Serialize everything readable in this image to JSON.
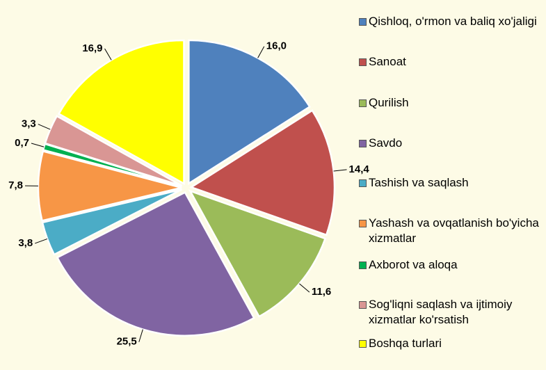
{
  "chart_data": {
    "type": "pie",
    "categories": [
      "Qishloq, o'rmon va baliq xo'jaligi",
      "Sanoat",
      "Qurilish",
      "Savdo",
      "Tashish va saqlash",
      "Yashash va ovqatlanish bo'yicha xizmatlar",
      "Axborot va aloqa",
      "Sog'liqni saqlash va ijtimoiy xizmatlar ko'rsatish",
      "Boshqa turlari"
    ],
    "values": [
      16.0,
      14.4,
      11.6,
      25.5,
      3.8,
      7.8,
      0.7,
      3.3,
      16.9
    ],
    "value_labels": [
      "16,0",
      "14,4",
      "11,6",
      "25,5",
      "3,8",
      "7,8",
      "0,7",
      "3,3",
      "16,9"
    ],
    "colors": [
      "#4f81bd",
      "#c0504d",
      "#9bbb59",
      "#8064a2",
      "#4bacc6",
      "#f79646",
      "#00b050",
      "#d99694",
      "#ffff00"
    ],
    "legend": "right"
  }
}
